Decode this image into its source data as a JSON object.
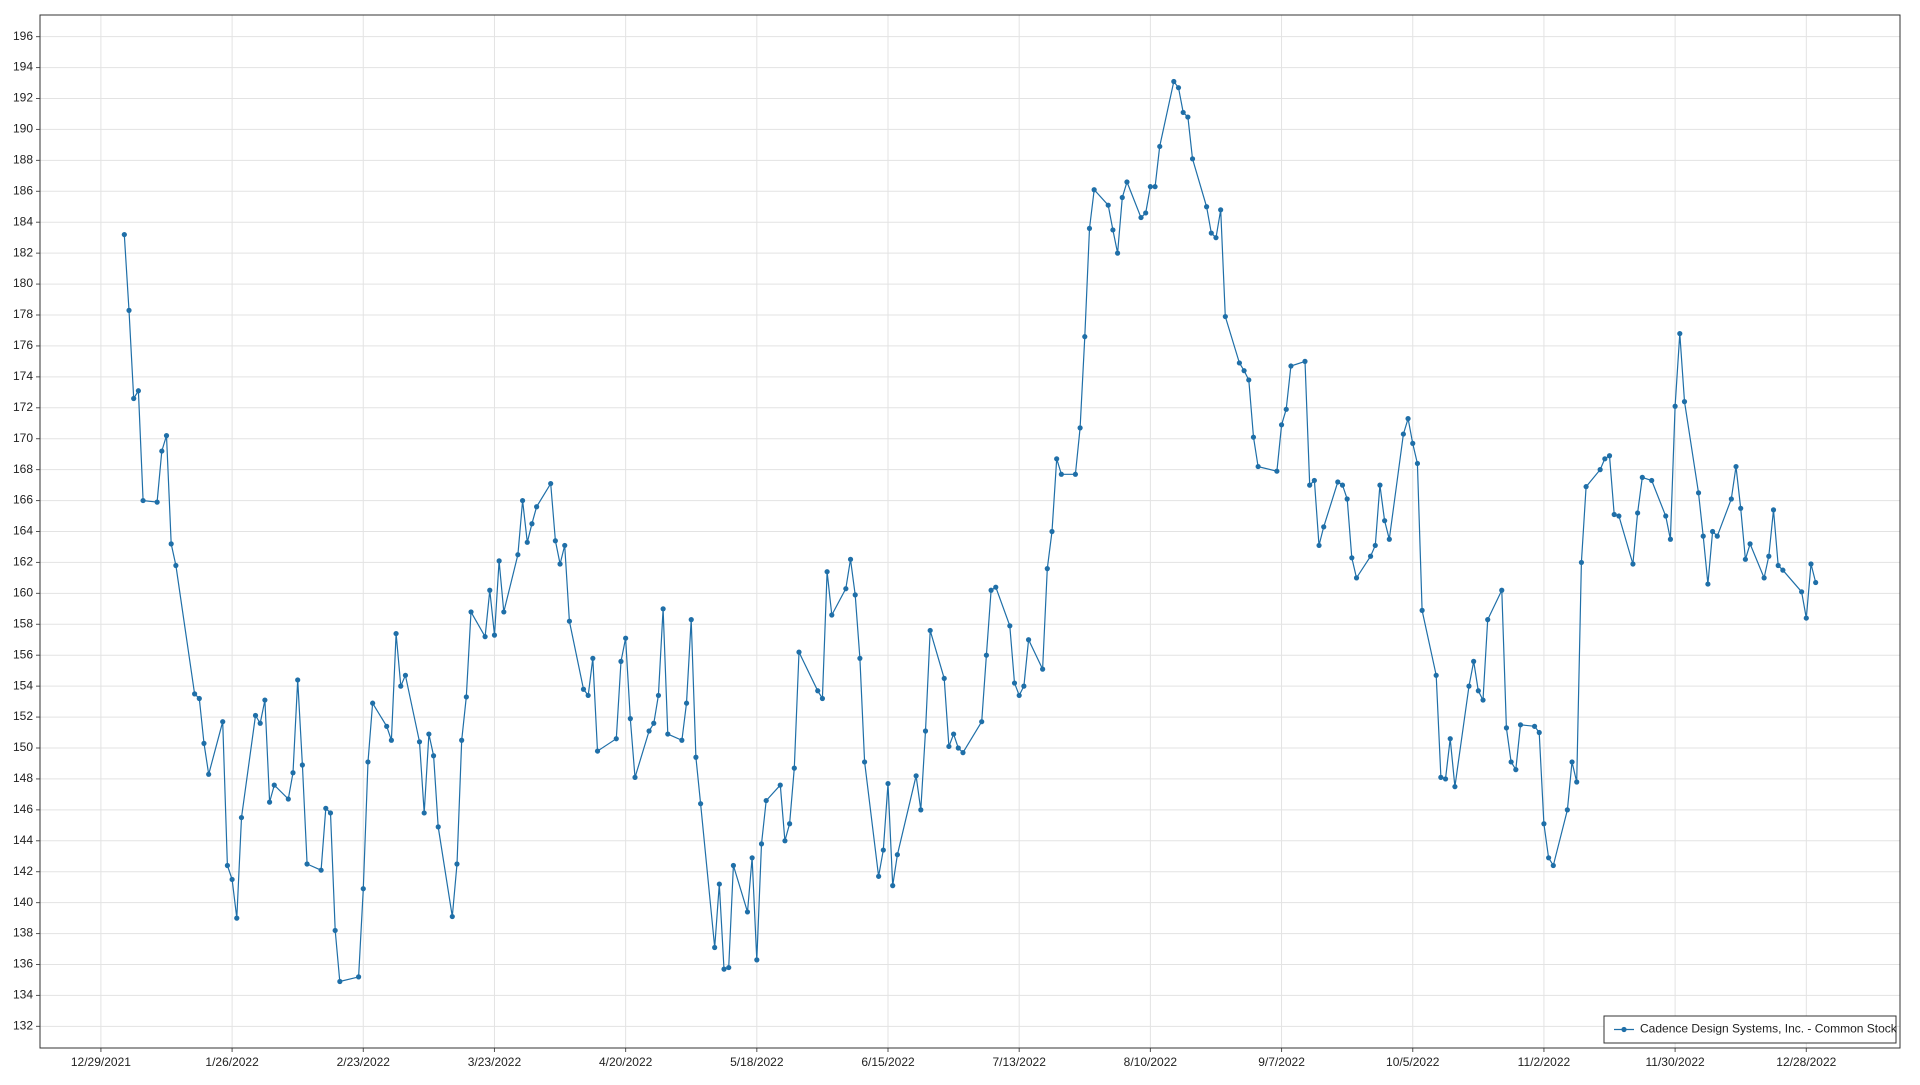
{
  "chart_data": {
    "type": "line",
    "x": [
      "1/3/2022",
      "1/4/2022",
      "1/5/2022",
      "1/6/2022",
      "1/7/2022",
      "1/10/2022",
      "1/11/2022",
      "1/12/2022",
      "1/13/2022",
      "1/14/2022",
      "1/18/2022",
      "1/19/2022",
      "1/20/2022",
      "1/21/2022",
      "1/24/2022",
      "1/25/2022",
      "1/26/2022",
      "1/27/2022",
      "1/28/2022",
      "1/31/2022",
      "2/1/2022",
      "2/2/2022",
      "2/3/2022",
      "2/4/2022",
      "2/7/2022",
      "2/8/2022",
      "2/9/2022",
      "2/10/2022",
      "2/11/2022",
      "2/14/2022",
      "2/15/2022",
      "2/16/2022",
      "2/17/2022",
      "2/18/2022",
      "2/22/2022",
      "2/23/2022",
      "2/24/2022",
      "2/25/2022",
      "2/28/2022",
      "3/1/2022",
      "3/2/2022",
      "3/3/2022",
      "3/4/2022",
      "3/7/2022",
      "3/8/2022",
      "3/9/2022",
      "3/10/2022",
      "3/11/2022",
      "3/14/2022",
      "3/15/2022",
      "3/16/2022",
      "3/17/2022",
      "3/18/2022",
      "3/21/2022",
      "3/22/2022",
      "3/23/2022",
      "3/24/2022",
      "3/25/2022",
      "3/28/2022",
      "3/29/2022",
      "3/30/2022",
      "3/31/2022",
      "4/1/2022",
      "4/4/2022",
      "4/5/2022",
      "4/6/2022",
      "4/7/2022",
      "4/8/2022",
      "4/11/2022",
      "4/12/2022",
      "4/13/2022",
      "4/14/2022",
      "4/18/2022",
      "4/19/2022",
      "4/20/2022",
      "4/21/2022",
      "4/22/2022",
      "4/25/2022",
      "4/26/2022",
      "4/27/2022",
      "4/28/2022",
      "4/29/2022",
      "5/2/2022",
      "5/3/2022",
      "5/4/2022",
      "5/5/2022",
      "5/6/2022",
      "5/9/2022",
      "5/10/2022",
      "5/11/2022",
      "5/12/2022",
      "5/13/2022",
      "5/16/2022",
      "5/17/2022",
      "5/18/2022",
      "5/19/2022",
      "5/20/2022",
      "5/23/2022",
      "5/24/2022",
      "5/25/2022",
      "5/26/2022",
      "5/27/2022",
      "5/31/2022",
      "6/1/2022",
      "6/2/2022",
      "6/3/2022",
      "6/6/2022",
      "6/7/2022",
      "6/8/2022",
      "6/9/2022",
      "6/10/2022",
      "6/13/2022",
      "6/14/2022",
      "6/15/2022",
      "6/16/2022",
      "6/17/2022",
      "6/21/2022",
      "6/22/2022",
      "6/23/2022",
      "6/24/2022",
      "6/27/2022",
      "6/28/2022",
      "6/29/2022",
      "6/30/2022",
      "7/1/2022",
      "7/5/2022",
      "7/6/2022",
      "7/7/2022",
      "7/8/2022",
      "7/11/2022",
      "7/12/2022",
      "7/13/2022",
      "7/14/2022",
      "7/15/2022",
      "7/18/2022",
      "7/19/2022",
      "7/20/2022",
      "7/21/2022",
      "7/22/2022",
      "7/25/2022",
      "7/26/2022",
      "7/27/2022",
      "7/28/2022",
      "7/29/2022",
      "8/1/2022",
      "8/2/2022",
      "8/3/2022",
      "8/4/2022",
      "8/5/2022",
      "8/8/2022",
      "8/9/2022",
      "8/10/2022",
      "8/11/2022",
      "8/12/2022",
      "8/15/2022",
      "8/16/2022",
      "8/17/2022",
      "8/18/2022",
      "8/19/2022",
      "8/22/2022",
      "8/23/2022",
      "8/24/2022",
      "8/25/2022",
      "8/26/2022",
      "8/29/2022",
      "8/30/2022",
      "8/31/2022",
      "9/1/2022",
      "9/2/2022",
      "9/6/2022",
      "9/7/2022",
      "9/8/2022",
      "9/9/2022",
      "9/12/2022",
      "9/13/2022",
      "9/14/2022",
      "9/15/2022",
      "9/16/2022",
      "9/19/2022",
      "9/20/2022",
      "9/21/2022",
      "9/22/2022",
      "9/23/2022",
      "9/26/2022",
      "9/27/2022",
      "9/28/2022",
      "9/29/2022",
      "9/30/2022",
      "10/3/2022",
      "10/4/2022",
      "10/5/2022",
      "10/6/2022",
      "10/7/2022",
      "10/10/2022",
      "10/11/2022",
      "10/12/2022",
      "10/13/2022",
      "10/14/2022",
      "10/17/2022",
      "10/18/2022",
      "10/19/2022",
      "10/20/2022",
      "10/21/2022",
      "10/24/2022",
      "10/25/2022",
      "10/26/2022",
      "10/27/2022",
      "10/28/2022",
      "10/31/2022",
      "11/1/2022",
      "11/2/2022",
      "11/3/2022",
      "11/4/2022",
      "11/7/2022",
      "11/8/2022",
      "11/9/2022",
      "11/10/2022",
      "11/11/2022",
      "11/14/2022",
      "11/15/2022",
      "11/16/2022",
      "11/17/2022",
      "11/18/2022",
      "11/21/2022",
      "11/22/2022",
      "11/23/2022",
      "11/25/2022",
      "11/28/2022",
      "11/29/2022",
      "11/30/2022",
      "12/1/2022",
      "12/2/2022",
      "12/5/2022",
      "12/6/2022",
      "12/7/2022",
      "12/8/2022",
      "12/9/2022",
      "12/12/2022",
      "12/13/2022",
      "12/14/2022",
      "12/15/2022",
      "12/16/2022",
      "12/19/2022",
      "12/20/2022",
      "12/21/2022",
      "12/22/2022",
      "12/23/2022",
      "12/27/2022",
      "12/28/2022",
      "12/29/2022",
      "12/30/2022"
    ],
    "series": [
      {
        "name": "Cadence Design Systems, Inc. - Common Stock",
        "color": "#1f6fa8",
        "values": [
          183.2,
          178.3,
          172.6,
          173.1,
          166.0,
          165.9,
          169.2,
          170.2,
          163.2,
          161.8,
          153.5,
          153.2,
          150.3,
          148.3,
          151.7,
          142.4,
          141.5,
          139.0,
          145.5,
          152.1,
          151.6,
          153.1,
          146.5,
          147.6,
          146.7,
          148.4,
          154.4,
          148.9,
          142.5,
          142.1,
          146.1,
          145.8,
          138.2,
          134.9,
          135.2,
          140.9,
          149.1,
          152.9,
          151.4,
          150.5,
          157.4,
          154.0,
          154.7,
          150.4,
          145.8,
          150.9,
          149.5,
          144.9,
          139.1,
          142.5,
          150.5,
          153.3,
          158.8,
          157.2,
          160.2,
          157.3,
          162.1,
          158.8,
          162.5,
          166.0,
          163.3,
          164.5,
          165.6,
          167.1,
          163.4,
          161.9,
          163.1,
          158.2,
          153.8,
          153.4,
          155.8,
          149.8,
          150.6,
          155.6,
          157.1,
          151.9,
          148.1,
          151.1,
          151.6,
          153.4,
          159.0,
          150.9,
          150.5,
          152.9,
          158.3,
          149.4,
          146.4,
          137.1,
          141.2,
          135.7,
          135.8,
          142.4,
          139.4,
          142.9,
          136.3,
          143.8,
          146.6,
          147.6,
          144.0,
          145.1,
          148.7,
          156.2,
          153.7,
          153.2,
          161.4,
          158.6,
          160.3,
          162.2,
          159.9,
          155.8,
          149.1,
          141.7,
          143.4,
          147.7,
          141.1,
          143.1,
          148.2,
          146.0,
          151.1,
          157.6,
          154.5,
          150.1,
          150.9,
          150.0,
          149.7,
          151.7,
          156.0,
          160.2,
          160.4,
          157.9,
          154.2,
          153.4,
          154.0,
          157.0,
          155.1,
          161.6,
          164.0,
          168.7,
          167.7,
          167.7,
          170.7,
          176.6,
          183.6,
          186.1,
          185.1,
          183.5,
          182.0,
          185.6,
          186.6,
          184.3,
          184.6,
          186.3,
          186.3,
          188.9,
          193.1,
          192.7,
          191.1,
          190.8,
          188.1,
          185.0,
          183.3,
          183.0,
          184.8,
          177.9,
          174.9,
          174.4,
          173.8,
          170.1,
          168.2,
          167.9,
          170.9,
          171.9,
          174.7,
          175.0,
          167.0,
          167.3,
          163.1,
          164.3,
          167.2,
          167.0,
          166.1,
          162.3,
          161.0,
          162.4,
          163.1,
          167.0,
          164.7,
          163.5,
          170.3,
          171.3,
          169.7,
          168.4,
          158.9,
          154.7,
          148.1,
          148.0,
          150.6,
          147.5,
          154.0,
          155.6,
          153.7,
          153.1,
          158.3,
          160.2,
          151.3,
          149.1,
          148.6,
          151.5,
          151.4,
          151.0,
          145.1,
          142.9,
          142.4,
          146.0,
          149.1,
          147.8,
          162.0,
          166.9,
          168.0,
          168.7,
          168.9,
          165.1,
          165.0,
          161.9,
          165.2,
          167.5,
          167.3,
          165.0,
          163.5,
          172.1,
          176.8,
          172.4,
          166.5,
          163.7,
          160.6,
          164.0,
          163.7,
          166.1,
          168.2,
          165.5,
          162.2,
          163.2,
          161.0,
          162.4,
          165.4,
          161.8,
          161.5,
          160.1,
          158.4,
          161.9,
          160.7
        ]
      }
    ],
    "xlim": [
      "12/16/2021",
      "1/17/2023"
    ],
    "xticks": [
      "12/29/2021",
      "1/26/2022",
      "2/23/2022",
      "3/23/2022",
      "4/20/2022",
      "5/18/2022",
      "6/15/2022",
      "7/13/2022",
      "8/10/2022",
      "9/7/2022",
      "10/5/2022",
      "11/2/2022",
      "11/30/2022",
      "12/28/2022"
    ],
    "ylim": [
      130.6,
      197.4
    ],
    "yticks": [
      132,
      134,
      136,
      138,
      140,
      142,
      144,
      146,
      148,
      150,
      152,
      154,
      156,
      158,
      160,
      162,
      164,
      166,
      168,
      170,
      172,
      174,
      176,
      178,
      180,
      182,
      184,
      186,
      188,
      190,
      192,
      194,
      196
    ],
    "grid": true,
    "legend": "lower right",
    "markers": true
  }
}
